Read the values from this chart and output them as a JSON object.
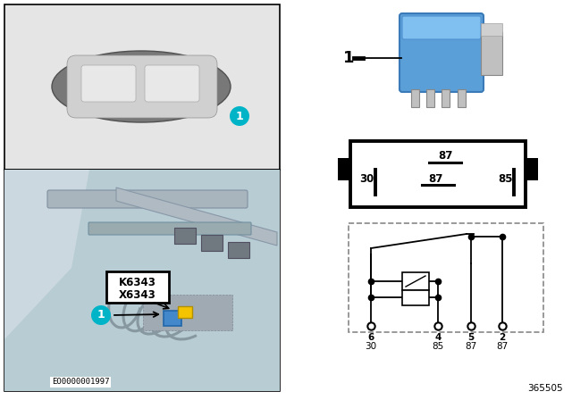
{
  "white": "#ffffff",
  "black": "#000000",
  "teal": "#00b4c8",
  "yellow": "#f5c400",
  "blue_relay": "#4d9ad4",
  "panel_top_bg": "#e5e5e5",
  "panel_bot_bg": "#c0d0d8",
  "car_body_color": "#787878",
  "car_roof_color": "#d0d0d0",
  "windshield_color": "#e8e8e8",
  "engine_silver": "#b0b8c0",
  "label_k": "K6343",
  "label_x": "X6343",
  "part_number": "365505",
  "image_code": "EO0000001997",
  "number1": "1",
  "relay_blue": "#5a9fd5",
  "relay_silver": "#c0c0c0",
  "pin30_label": "30",
  "pin87a_label": "87",
  "pin87b_label": "87",
  "pin85_label": "85",
  "circ_pin_nums": [
    "6",
    "4",
    "5",
    "2"
  ],
  "circ_pin_funcs": [
    "30",
    "85",
    "87",
    "87"
  ]
}
